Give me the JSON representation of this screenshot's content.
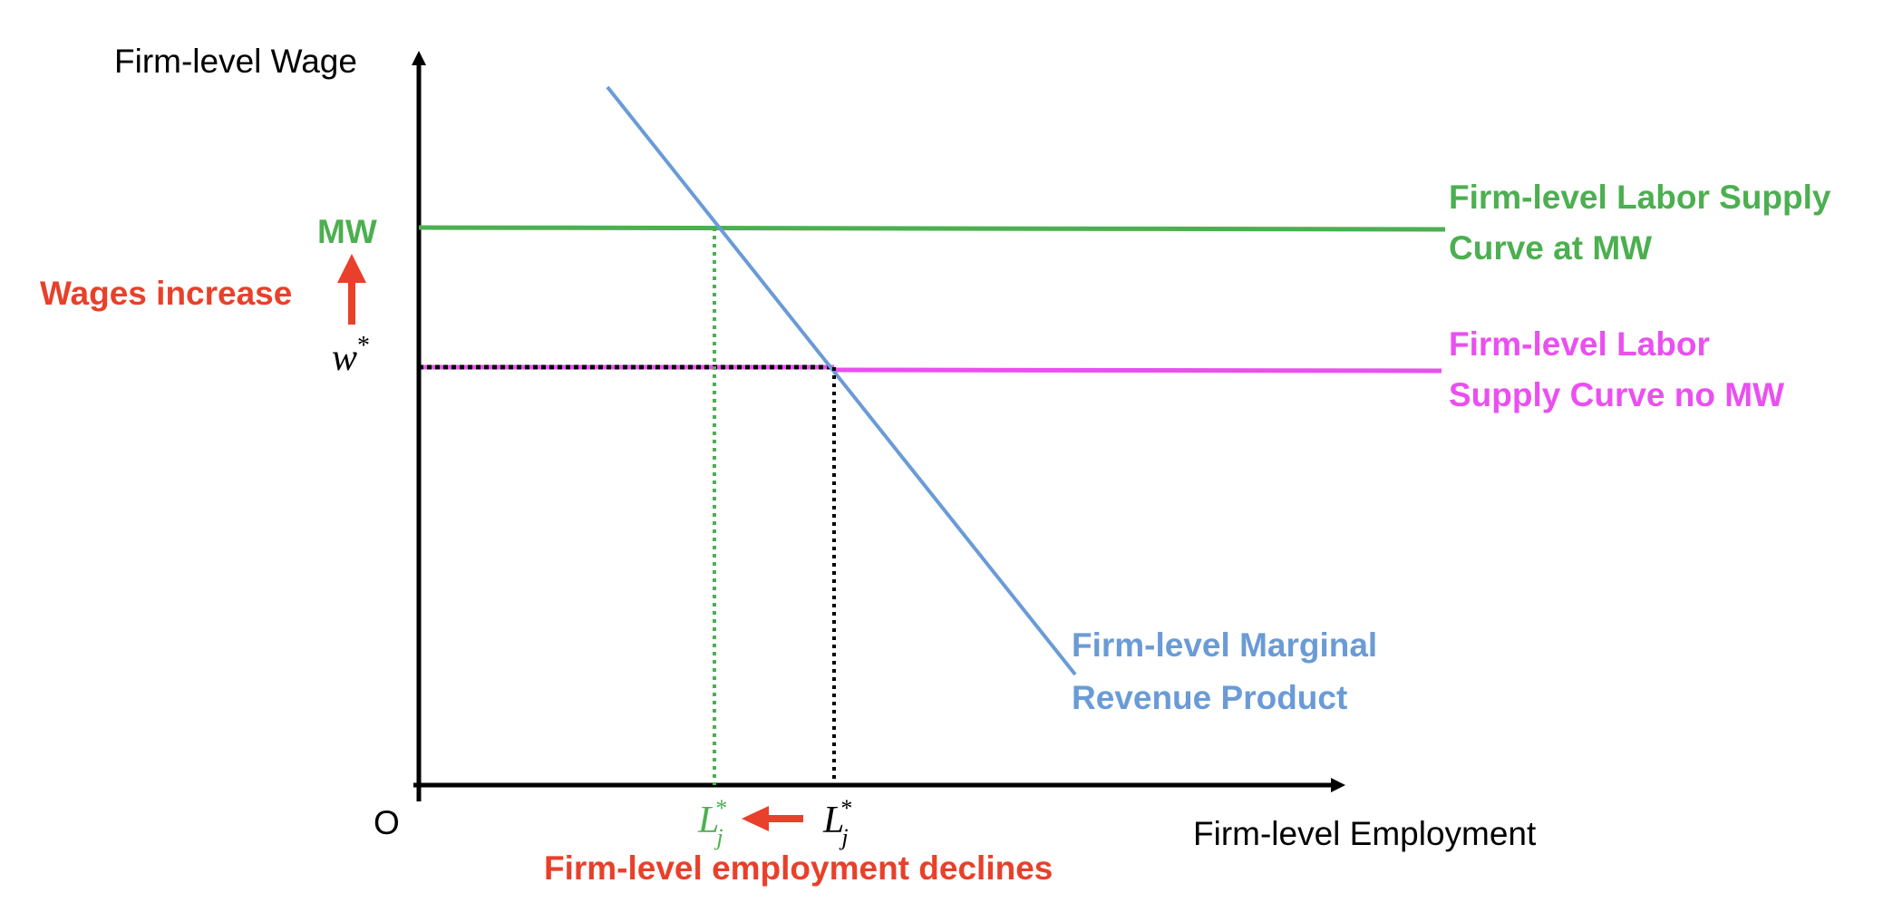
{
  "axes": {
    "y_title": "Firm-level Wage",
    "x_title": "Firm-level Employment",
    "origin_label": "O"
  },
  "wage_levels": {
    "mw_label": "MW",
    "w_star_base": "w",
    "w_star_sup": "*"
  },
  "employment_levels": {
    "l_base": "L",
    "l_sub": "j",
    "l_sup": "*"
  },
  "curves": {
    "supply_mw_line1": "Firm-level Labor Supply",
    "supply_mw_line2": "Curve at MW",
    "supply_nomw_line1": "Firm-level Labor",
    "supply_nomw_line2": "Supply Curve no MW",
    "mrp_line1": "Firm-level Marginal",
    "mrp_line2": "Revenue Product"
  },
  "annotations": {
    "wages_increase": "Wages increase",
    "employment_declines": "Firm-level employment declines"
  },
  "colors": {
    "green": "#4caf50",
    "magenta": "#ea4ff0",
    "blue": "#6a9bd6",
    "red": "#e8402a",
    "black": "#000000"
  }
}
